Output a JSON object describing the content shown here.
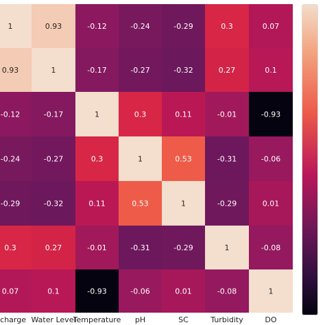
{
  "chart_data": {
    "type": "heatmap",
    "title": "",
    "x_labels": [
      "scharge",
      "Water Level",
      "Temperature",
      "pH",
      "SC",
      "Turbidity",
      "DO"
    ],
    "y_labels": [
      "",
      "",
      "",
      "",
      "",
      "",
      ""
    ],
    "values": [
      [
        1,
        0.93,
        -0.12,
        -0.24,
        -0.29,
        0.3,
        0.07
      ],
      [
        0.93,
        1,
        -0.17,
        -0.27,
        -0.32,
        0.27,
        0.1
      ],
      [
        -0.12,
        -0.17,
        1,
        0.3,
        0.11,
        -0.01,
        -0.93
      ],
      [
        -0.24,
        -0.27,
        0.3,
        1,
        0.53,
        -0.31,
        -0.06
      ],
      [
        -0.29,
        -0.32,
        0.11,
        0.53,
        1,
        -0.29,
        0.01
      ],
      [
        0.3,
        0.27,
        -0.01,
        -0.31,
        -0.29,
        1,
        -0.08
      ],
      [
        0.07,
        0.1,
        -0.93,
        -0.06,
        0.01,
        -0.08,
        1
      ]
    ],
    "cell_text": [
      [
        "1",
        "0.93",
        "-0.12",
        "-0.24",
        "-0.29",
        "0.3",
        "0.07"
      ],
      [
        "0.93",
        "1",
        "-0.17",
        "-0.27",
        "-0.32",
        "0.27",
        "0.1"
      ],
      [
        "-0.12",
        "-0.17",
        "1",
        "0.3",
        "0.11",
        "-0.01",
        "-0.93"
      ],
      [
        "-0.24",
        "-0.27",
        "0.3",
        "1",
        "0.53",
        "-0.31",
        "-0.06"
      ],
      [
        "-0.29",
        "-0.32",
        "0.11",
        "0.53",
        "1",
        "-0.29",
        "0.01"
      ],
      [
        "0.3",
        "0.27",
        "-0.01",
        "-0.31",
        "-0.29",
        "1",
        "-0.08"
      ],
      [
        "0.07",
        "0.1",
        "-0.93",
        "-0.06",
        "0.01",
        "-0.08",
        "1"
      ]
    ],
    "value_range": [
      -0.93,
      1
    ],
    "colormap": "rocket",
    "colorbar": "right",
    "grid": false
  }
}
